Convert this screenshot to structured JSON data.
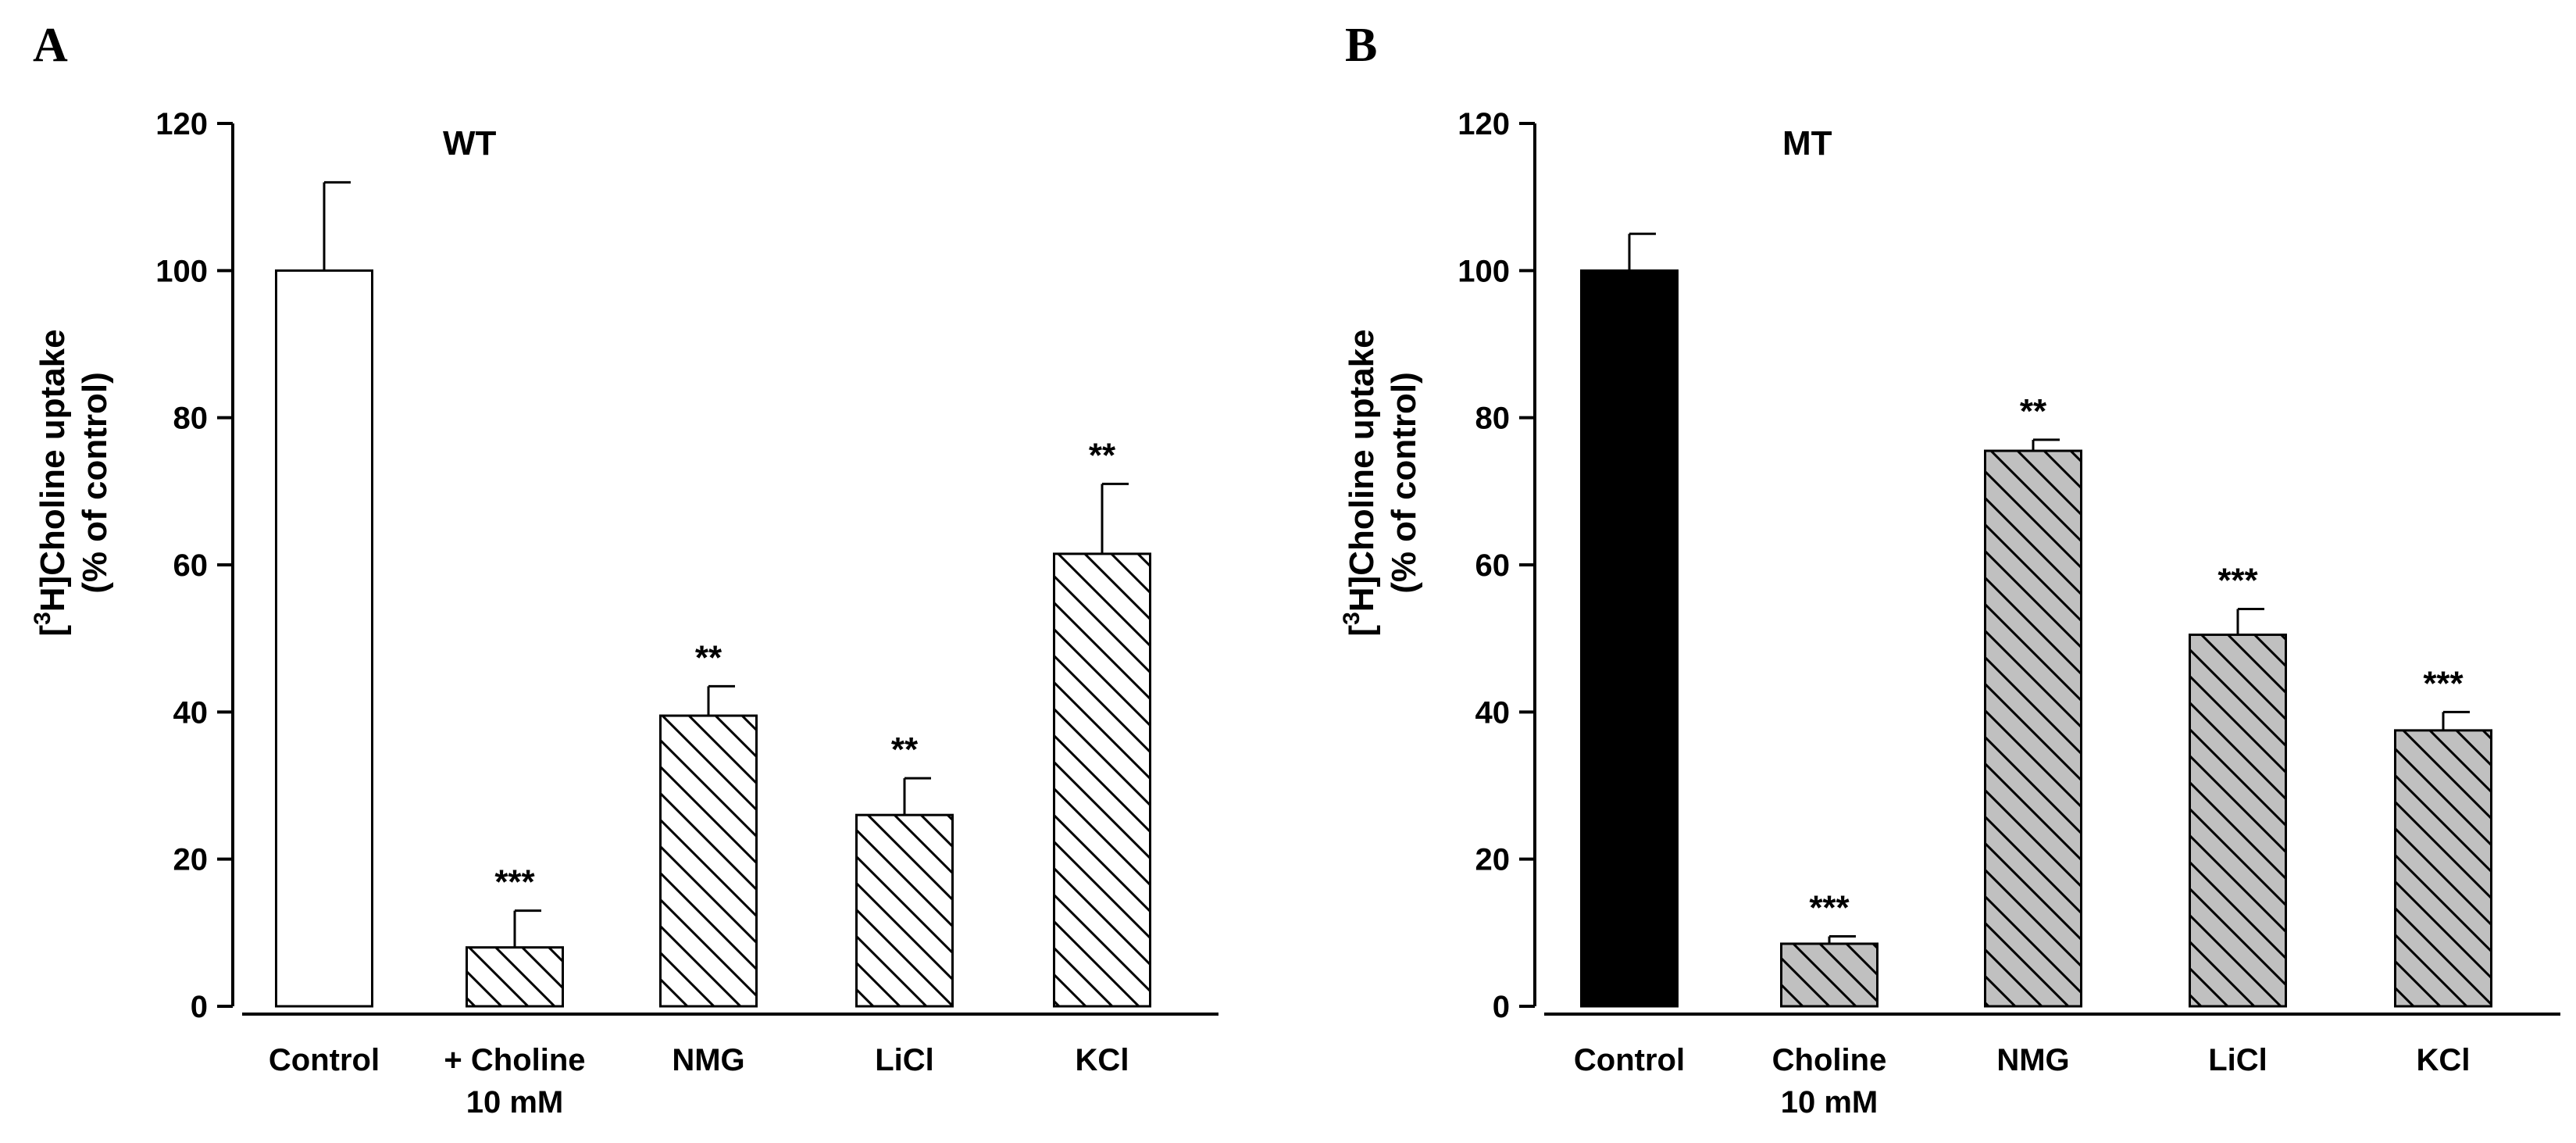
{
  "chart_data": [
    {
      "type": "bar",
      "panel_label": "A",
      "title": "WT",
      "ylabel_line1_pre": "[",
      "ylabel_line1_sup": "3",
      "ylabel_line1_post": "H]Choline uptake",
      "ylabel_line2": "(% of control)",
      "xlabel": "",
      "ylim": [
        0,
        120
      ],
      "yticks": [
        0,
        20,
        40,
        60,
        80,
        100,
        120
      ],
      "categories": [
        {
          "line1": "Control",
          "line2": ""
        },
        {
          "line1": "+ Choline",
          "line2": "10 mM"
        },
        {
          "line1": "NMG",
          "line2": ""
        },
        {
          "line1": "LiCl",
          "line2": ""
        },
        {
          "line1": "KCl",
          "line2": ""
        }
      ],
      "values": [
        100,
        8,
        39.5,
        26,
        61.5
      ],
      "errors": [
        12,
        5,
        4,
        5,
        9.5
      ],
      "significance": [
        "",
        "***",
        "**",
        "**",
        "**"
      ],
      "fills": [
        "open",
        "hatch",
        "hatch",
        "hatch",
        "hatch"
      ],
      "colors": {
        "hatch_bg": "#ffffff",
        "solid": "#000000"
      }
    },
    {
      "type": "bar",
      "panel_label": "B",
      "title": "MT",
      "ylabel_line1_pre": "[",
      "ylabel_line1_sup": "3",
      "ylabel_line1_post": "H]Choline uptake",
      "ylabel_line2": "(% of control)",
      "xlabel": "",
      "ylim": [
        0,
        120
      ],
      "yticks": [
        0,
        20,
        40,
        60,
        80,
        100,
        120
      ],
      "categories": [
        {
          "line1": "Control",
          "line2": ""
        },
        {
          "line1": "Choline",
          "line2": "10 mM"
        },
        {
          "line1": "NMG",
          "line2": ""
        },
        {
          "line1": "LiCl",
          "line2": ""
        },
        {
          "line1": "KCl",
          "line2": ""
        }
      ],
      "values": [
        100,
        8.5,
        75.5,
        50.5,
        37.5
      ],
      "errors": [
        5,
        1,
        1.5,
        3.5,
        2.5
      ],
      "significance": [
        "",
        "***",
        "**",
        "***",
        "***"
      ],
      "fills": [
        "solid",
        "hatch",
        "hatch",
        "hatch",
        "hatch"
      ],
      "colors": {
        "hatch_bg": "#c0c0c0",
        "solid": "#000000"
      }
    }
  ]
}
